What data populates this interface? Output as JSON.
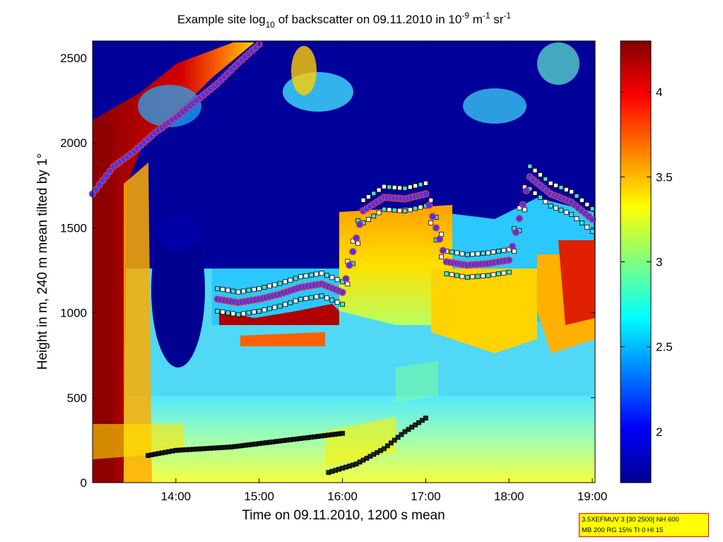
{
  "chart_data": {
    "type": "heatmap",
    "title": "Example site log₁₀ of backscatter on 09.11.2010 in 10⁻⁹ m⁻¹ sr⁻¹",
    "title_parts": {
      "main": "Example site log",
      "sub": "10",
      "mid": " of backscatter on 09.11.2010 in 10",
      "sup1": "-9",
      "m": " m",
      "sup2": "-1",
      "sr": " sr",
      "sup3": "-1"
    },
    "xlabel": "Time on 09.11.2010, 1200 s mean",
    "ylabel": "Height in m, 240 m mean tilted by 1°",
    "x_ticks": [
      "14:00",
      "15:00",
      "16:00",
      "17:00",
      "18:00",
      "19:00"
    ],
    "y_ticks": [
      "0",
      "500",
      "1000",
      "1500",
      "2000",
      "2500"
    ],
    "xlim": [
      "13:00",
      "19:02"
    ],
    "ylim": [
      0,
      2600
    ],
    "colorbar": {
      "colormap": "jet",
      "range": [
        1.7,
        4.3
      ],
      "ticks": [
        "2",
        "2.5",
        "3",
        "3.5",
        "4"
      ]
    },
    "cloud_base_layer": [
      {
        "t": "13:00",
        "h": 1700
      },
      {
        "t": "13:15",
        "h": 1860
      },
      {
        "t": "13:30",
        "h": 1950
      },
      {
        "t": "13:45",
        "h": 2060
      },
      {
        "t": "14:00",
        "h": 2150
      },
      {
        "t": "14:15",
        "h": 2250
      },
      {
        "t": "14:30",
        "h": 2350
      },
      {
        "t": "14:45",
        "h": 2470
      },
      {
        "t": "15:00",
        "h": 2580
      }
    ],
    "boundary_layer": [
      {
        "t": "14:30",
        "h": 1080
      },
      {
        "t": "14:45",
        "h": 1060
      },
      {
        "t": "15:00",
        "h": 1080
      },
      {
        "t": "15:15",
        "h": 1110
      },
      {
        "t": "15:30",
        "h": 1150
      },
      {
        "t": "15:45",
        "h": 1170
      },
      {
        "t": "16:00",
        "h": 1120
      },
      {
        "t": "16:15",
        "h": 1600
      },
      {
        "t": "16:30",
        "h": 1680
      },
      {
        "t": "16:45",
        "h": 1670
      },
      {
        "t": "17:00",
        "h": 1700
      },
      {
        "t": "17:15",
        "h": 1300
      },
      {
        "t": "17:30",
        "h": 1280
      },
      {
        "t": "17:45",
        "h": 1290
      },
      {
        "t": "18:00",
        "h": 1310
      },
      {
        "t": "18:15",
        "h": 1800
      },
      {
        "t": "18:30",
        "h": 1700
      },
      {
        "t": "18:45",
        "h": 1650
      },
      {
        "t": "19:00",
        "h": 1550
      }
    ],
    "surface_layer": [
      {
        "t": "13:40",
        "h": 160
      },
      {
        "t": "14:00",
        "h": 190
      },
      {
        "t": "14:20",
        "h": 200
      },
      {
        "t": "14:40",
        "h": 210
      },
      {
        "t": "15:00",
        "h": 230
      },
      {
        "t": "15:20",
        "h": 250
      },
      {
        "t": "15:40",
        "h": 270
      },
      {
        "t": "16:00",
        "h": 290
      }
    ],
    "residual_layer": [
      {
        "t": "15:50",
        "h": 60
      },
      {
        "t": "16:10",
        "h": 110
      },
      {
        "t": "16:30",
        "h": 200
      },
      {
        "t": "16:45",
        "h": 300
      },
      {
        "t": "17:00",
        "h": 380
      }
    ]
  },
  "info_box": {
    "line1": "3.5XEFMUV 3 [30 2500] NH 600",
    "line2": "MB 200 RG 15% TI 0 HI 15"
  },
  "colors": {
    "background": "#ffffff",
    "marker_cloud": "#ff0000",
    "marker_layer": "#3a3aff",
    "info_box_fill": "#ffff00",
    "info_box_border": "#ff0000"
  }
}
